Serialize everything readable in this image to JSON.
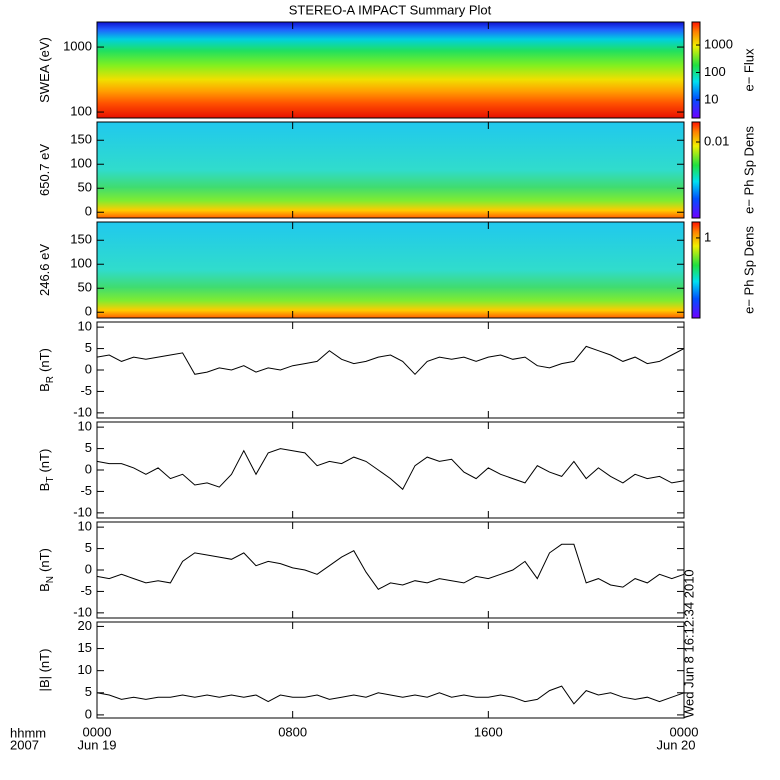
{
  "title": "STEREO-A IMPACT Summary Plot",
  "xaxis": {
    "xlim": [
      0,
      24
    ],
    "xticks": [
      {
        "value": 0,
        "label": "0000"
      },
      {
        "value": 8,
        "label": "0800"
      },
      {
        "value": 16,
        "label": "1600"
      },
      {
        "value": 24,
        "label": "0000"
      }
    ],
    "dates": [
      "Jun 19",
      "Jun 20"
    ],
    "label": "hhmm",
    "year": "2007"
  },
  "timestamp": "Wed Jun  8 16:12:34 2010",
  "chart_data": [
    {
      "type": "spectrogram",
      "ylabel": "SWEA (eV)",
      "log": true,
      "ylim": [
        81,
        2430
      ],
      "yticks": [
        100,
        1000
      ],
      "colorbar": {
        "label": "e− Flux",
        "log": true,
        "clim": [
          2.2,
          6900
        ],
        "ticks": [
          10,
          100,
          1000
        ]
      }
    },
    {
      "type": "spectrogram",
      "ylabel": "650.7 eV",
      "log": false,
      "ylim": [
        -12,
        188
      ],
      "yticks": [
        0,
        50,
        100,
        150
      ],
      "colorbar": {
        "label": "e− Ph Sp Dens",
        "log": true,
        "clim": [
          0.000126,
          0.0316
        ],
        "ticks": [
          0.01
        ]
      }
    },
    {
      "type": "spectrogram",
      "ylabel": "246.6 eV",
      "log": false,
      "ylim": [
        -12,
        188
      ],
      "yticks": [
        0,
        50,
        100,
        150
      ],
      "colorbar": {
        "label": "e− Ph Sp Dens",
        "log": true,
        "clim": [
          0.01,
          2.5
        ],
        "ticks": [
          1
        ]
      }
    },
    {
      "type": "line",
      "ylabel": "B",
      "ylabel_sub": "R",
      "ylabel_unit": "(nT)",
      "ylim": [
        -11.2,
        11.2
      ],
      "yticks": [
        -10,
        -5,
        0,
        5,
        10
      ],
      "x": [
        0,
        0.5,
        1,
        1.5,
        2,
        2.5,
        3,
        3.5,
        4,
        4.5,
        5,
        5.5,
        6,
        6.5,
        7,
        7.5,
        8,
        8.5,
        9,
        9.5,
        10,
        10.5,
        11,
        11.5,
        12,
        12.5,
        13,
        13.5,
        14,
        14.5,
        15,
        15.5,
        16,
        16.5,
        17,
        17.5,
        18,
        18.5,
        19,
        19.5,
        20,
        20.5,
        21,
        21.5,
        22,
        22.5,
        23,
        23.5,
        24
      ],
      "series": [
        {
          "color": "#000000",
          "values": [
            3,
            3.5,
            2,
            3,
            2.5,
            3,
            3.5,
            4,
            -1,
            -0.5,
            0.5,
            0,
            1,
            -0.5,
            0.5,
            0,
            1,
            1.5,
            2,
            4.5,
            2.5,
            1.5,
            2,
            3,
            3.5,
            2,
            -1,
            2,
            3,
            2.5,
            3,
            2,
            3,
            3.5,
            2.5,
            3,
            1,
            0.5,
            1.5,
            2,
            5.5,
            4.5,
            3.5,
            2,
            3,
            1.5,
            2,
            3.5,
            5
          ]
        }
      ]
    },
    {
      "type": "line",
      "ylabel": "B",
      "ylabel_sub": "T",
      "ylabel_unit": "(nT)",
      "ylim": [
        -11.2,
        11.2
      ],
      "yticks": [
        -10,
        -5,
        0,
        5,
        10
      ],
      "x": [
        0,
        0.5,
        1,
        1.5,
        2,
        2.5,
        3,
        3.5,
        4,
        4.5,
        5,
        5.5,
        6,
        6.5,
        7,
        7.5,
        8,
        8.5,
        9,
        9.5,
        10,
        10.5,
        11,
        11.5,
        12,
        12.5,
        13,
        13.5,
        14,
        14.5,
        15,
        15.5,
        16,
        16.5,
        17,
        17.5,
        18,
        18.5,
        19,
        19.5,
        20,
        20.5,
        21,
        21.5,
        22,
        22.5,
        23,
        23.5,
        24
      ],
      "series": [
        {
          "color": "#000000",
          "values": [
            2,
            1.5,
            1.5,
            0.5,
            -1,
            0.5,
            -2,
            -1,
            -3.5,
            -3,
            -4,
            -1,
            4.5,
            -1,
            4,
            5,
            4.5,
            4,
            1,
            2,
            1.5,
            3,
            2,
            0,
            -2,
            -4.5,
            1,
            3,
            2,
            2.5,
            -0.5,
            -2,
            0.5,
            -1,
            -2,
            -3,
            1,
            -0.5,
            -1.5,
            2,
            -2,
            0.5,
            -1.5,
            -3,
            -1,
            -2,
            -1.5,
            -3,
            -2.5
          ]
        }
      ]
    },
    {
      "type": "line",
      "ylabel": "B",
      "ylabel_sub": "N",
      "ylabel_unit": "(nT)",
      "ylim": [
        -11.2,
        11.2
      ],
      "yticks": [
        -10,
        -5,
        0,
        5,
        10
      ],
      "x": [
        0,
        0.5,
        1,
        1.5,
        2,
        2.5,
        3,
        3.5,
        4,
        4.5,
        5,
        5.5,
        6,
        6.5,
        7,
        7.5,
        8,
        8.5,
        9,
        9.5,
        10,
        10.5,
        11,
        11.5,
        12,
        12.5,
        13,
        13.5,
        14,
        14.5,
        15,
        15.5,
        16,
        16.5,
        17,
        17.5,
        18,
        18.5,
        19,
        19.5,
        20,
        20.5,
        21,
        21.5,
        22,
        22.5,
        23,
        23.5,
        24
      ],
      "series": [
        {
          "color": "#000000",
          "values": [
            -1.5,
            -2,
            -1,
            -2,
            -3,
            -2.5,
            -3,
            2,
            4,
            3.5,
            3,
            2.5,
            4,
            1,
            2,
            1.5,
            0.5,
            0,
            -1,
            1,
            3,
            4.5,
            -0.5,
            -4.5,
            -3,
            -3.5,
            -2.5,
            -3,
            -2,
            -2.5,
            -3,
            -1.5,
            -2,
            -1,
            0,
            2,
            -2,
            4,
            6,
            6,
            -3,
            -2,
            -3.5,
            -4,
            -2,
            -3,
            -1,
            -2,
            -1
          ]
        }
      ]
    },
    {
      "type": "line",
      "ylabel": "|B| (nT)",
      "ylim": [
        -0.7,
        21
      ],
      "yticks": [
        0,
        5,
        10,
        15,
        20
      ],
      "x": [
        0,
        0.5,
        1,
        1.5,
        2,
        2.5,
        3,
        3.5,
        4,
        4.5,
        5,
        5.5,
        6,
        6.5,
        7,
        7.5,
        8,
        8.5,
        9,
        9.5,
        10,
        10.5,
        11,
        11.5,
        12,
        12.5,
        13,
        13.5,
        14,
        14.5,
        15,
        15.5,
        16,
        16.5,
        17,
        17.5,
        18,
        18.5,
        19,
        19.5,
        20,
        20.5,
        21,
        21.5,
        22,
        22.5,
        23,
        23.5,
        24
      ],
      "series": [
        {
          "color": "#000000",
          "values": [
            5,
            4.5,
            3.5,
            4,
            3.5,
            4,
            4,
            4.5,
            4,
            4.5,
            4,
            4.5,
            4,
            4.5,
            3,
            4.5,
            4,
            4,
            4.5,
            3.5,
            4,
            4.5,
            4,
            5,
            4.5,
            4,
            4.5,
            4,
            5,
            4,
            4.5,
            4,
            4,
            4.5,
            4,
            3,
            3.5,
            5.5,
            6.5,
            2.5,
            5.5,
            4.5,
            5,
            4,
            3.5,
            4,
            3,
            4,
            5
          ]
        }
      ]
    }
  ]
}
